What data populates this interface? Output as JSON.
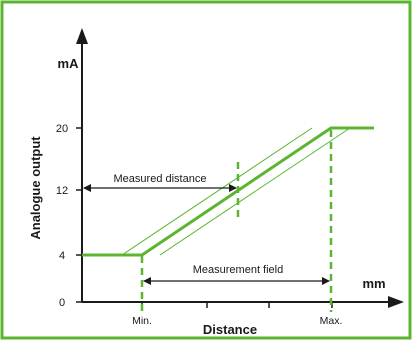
{
  "chart_data": {
    "type": "line",
    "xlabel": "Distance",
    "ylabel": "Analogue output",
    "y_unit": "mA",
    "x_unit": "mm",
    "y_ticks": [
      {
        "value": 0,
        "label": "0"
      },
      {
        "value": 4,
        "label": "4"
      },
      {
        "value": 12,
        "label": "12"
      },
      {
        "value": 20,
        "label": "20"
      }
    ],
    "x_markers": {
      "min_label": "Min.",
      "max_label": "Max."
    },
    "series": [
      {
        "points": [
          {
            "x": "below-min",
            "y": 4
          },
          {
            "x": "Min.",
            "y": 4
          },
          {
            "x": "Max.",
            "y": 20
          },
          {
            "x": "above-max",
            "y": 20
          }
        ]
      }
    ],
    "annotations": {
      "measured_distance": "Measured distance",
      "measurement_field": "Measurement field"
    }
  },
  "colors": {
    "frame": "#5cb531",
    "curve": "#5cb531",
    "axis": "#1a1a1a",
    "text": "#1a1a1a"
  }
}
